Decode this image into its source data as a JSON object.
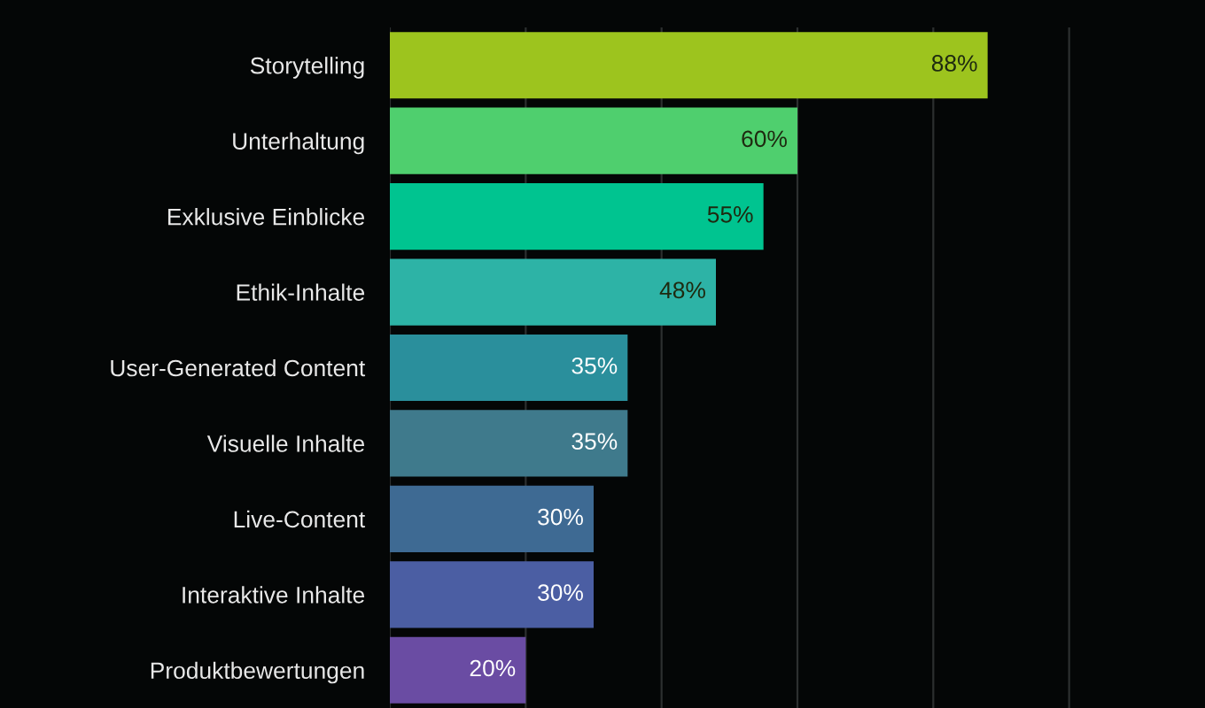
{
  "chart_data": {
    "type": "bar",
    "orientation": "horizontal",
    "categories": [
      "Storytelling",
      "Unterhaltung",
      "Exklusive Einblicke",
      "Ethik-Inhalte",
      "User-Generated Content",
      "Visuelle Inhalte",
      "Live-Content",
      "Interaktive Inhalte",
      "Produktbewertungen"
    ],
    "values": [
      88,
      60,
      55,
      48,
      35,
      35,
      30,
      30,
      20
    ],
    "colors": [
      "#9dc41e",
      "#4fcf6e",
      "#00c490",
      "#2db3a6",
      "#2a8f9c",
      "#3f7a8c",
      "#3e6a93",
      "#4b5ea3",
      "#6a4ca3"
    ],
    "value_labels": [
      "88%",
      "60%",
      "55%",
      "48%",
      "35%",
      "35%",
      "30%",
      "30%",
      "20%"
    ],
    "xlim": [
      0,
      120
    ],
    "xticks": [
      {
        "value": 0,
        "label": null
      },
      {
        "value": 20,
        "label": null
      },
      {
        "value": 40,
        "label": null
      },
      {
        "value": 60,
        "label": null
      },
      {
        "value": 80,
        "label": null
      },
      {
        "value": 100,
        "label": null
      }
    ],
    "grid": "x",
    "tick_labels": "y"
  }
}
